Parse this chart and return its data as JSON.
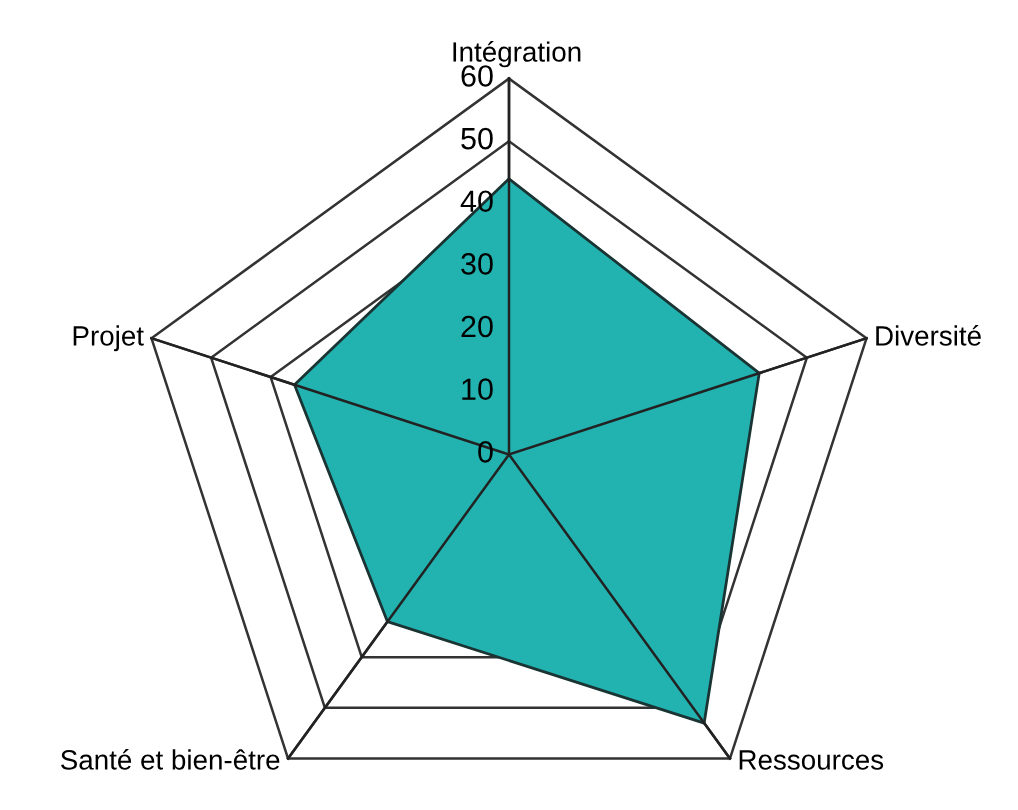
{
  "chart_data": {
    "type": "radar",
    "categories": [
      "Intégration",
      "Diversité",
      "Ressources",
      "Santé et bien-être",
      "Projet"
    ],
    "series": [
      {
        "color": "#22b3b1",
        "values": [
          44,
          42,
          53,
          33,
          36
        ]
      }
    ],
    "ylim": [
      0,
      60
    ],
    "yticks": [
      0,
      10,
      20,
      30,
      40,
      50,
      60
    ],
    "grid": true,
    "legend": false
  }
}
